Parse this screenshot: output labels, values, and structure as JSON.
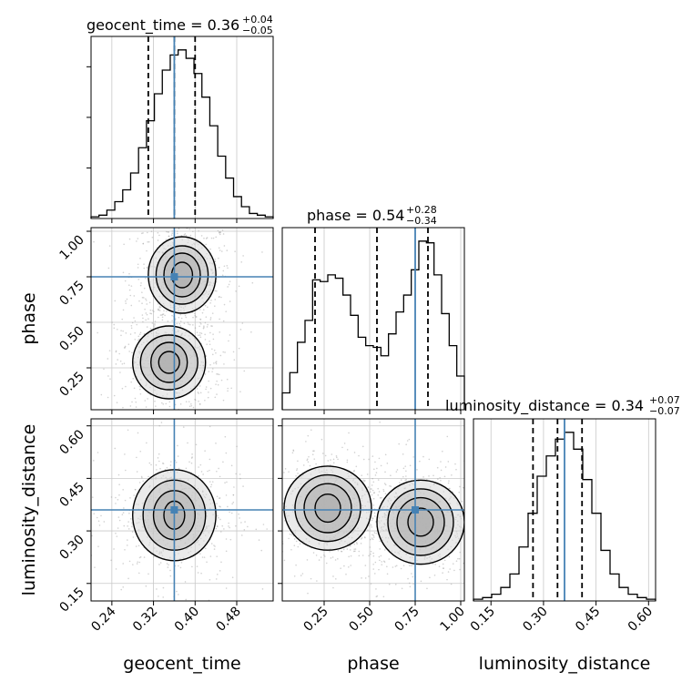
{
  "parameters": [
    {
      "name": "geocent_time",
      "truth": 0.36,
      "median": 0.36,
      "q_lo": 0.31,
      "q_hi": 0.4,
      "title_main": "geocent_time = 0.36",
      "title_sup": "+0.04",
      "title_sub": "−0.05"
    },
    {
      "name": "phase",
      "truth": 0.75,
      "median": 0.54,
      "q_lo": 0.2,
      "q_hi": 0.82,
      "title_main": "phase = 0.54",
      "title_sup": "+0.28",
      "title_sub": "−0.34"
    },
    {
      "name": "luminosity_distance",
      "truth": 0.36,
      "median": 0.34,
      "q_lo": 0.27,
      "q_hi": 0.41,
      "title_main": "luminosity_distance = 0.34",
      "title_sup": "+0.07",
      "title_sub": "−0.07"
    }
  ],
  "axis_labels": {
    "x_geocent": "geocent_time",
    "x_phase": "phase",
    "x_lumdist": "luminosity_distance",
    "y_phase": "phase",
    "y_lumdist": "luminosity_distance"
  },
  "colors": {
    "truth": "#4682b4",
    "hist": "#000000",
    "grid": "#c8c8c8",
    "points": "#9a9a9a"
  },
  "chart_data": {
    "type": "corner",
    "ranges": {
      "geocent_time": [
        0.2,
        0.55
      ],
      "phase": [
        0.02,
        1.02
      ],
      "luminosity_distance": [
        0.1,
        0.62
      ]
    },
    "ticks": {
      "geocent_time": [
        0.24,
        0.32,
        0.4,
        0.48
      ],
      "phase": [
        0.25,
        0.5,
        0.75,
        1.0
      ],
      "luminosity_distance": [
        0.15,
        0.3,
        0.45,
        0.6
      ]
    },
    "tick_labels": {
      "geocent_time": [
        "0.24",
        "0.32",
        "0.40",
        "0.48"
      ],
      "phase": [
        "0.25",
        "0.50",
        "0.75",
        "1.00"
      ],
      "luminosity_distance": [
        "0.15",
        "0.30",
        "0.45",
        "0.60"
      ]
    },
    "histograms": {
      "geocent_time": [
        0.01,
        0.02,
        0.05,
        0.1,
        0.17,
        0.27,
        0.42,
        0.58,
        0.74,
        0.88,
        0.97,
        1.0,
        0.95,
        0.86,
        0.72,
        0.55,
        0.37,
        0.24,
        0.13,
        0.07,
        0.03,
        0.02,
        0.01
      ],
      "phase": [
        0.1,
        0.22,
        0.4,
        0.53,
        0.77,
        0.76,
        0.8,
        0.78,
        0.68,
        0.56,
        0.43,
        0.38,
        0.37,
        0.32,
        0.45,
        0.58,
        0.68,
        0.83,
        1.0,
        0.99,
        0.8,
        0.57,
        0.38,
        0.2
      ],
      "luminosity_distance": [
        0.01,
        0.02,
        0.04,
        0.08,
        0.16,
        0.32,
        0.52,
        0.74,
        0.86,
        0.96,
        1.0,
        0.9,
        0.72,
        0.52,
        0.3,
        0.16,
        0.08,
        0.04,
        0.02,
        0.01
      ]
    },
    "hist_ylim": [
      0,
      1.08
    ],
    "contours_geocent_phase": [
      {
        "cx": 0.375,
        "cy": 0.76,
        "levels": [
          [
            0.02,
            0.07
          ],
          [
            0.035,
            0.12
          ],
          [
            0.05,
            0.16
          ],
          [
            0.065,
            0.21
          ]
        ]
      },
      {
        "cx": 0.35,
        "cy": 0.28,
        "levels": [
          [
            0.02,
            0.06
          ],
          [
            0.035,
            0.11
          ],
          [
            0.055,
            0.15
          ],
          [
            0.07,
            0.2
          ]
        ]
      }
    ],
    "contours_geocent_lumdist": [
      {
        "cx": 0.36,
        "cy": 0.345,
        "levels": [
          [
            0.02,
            0.04
          ],
          [
            0.04,
            0.07
          ],
          [
            0.06,
            0.1
          ],
          [
            0.08,
            0.13
          ]
        ]
      }
    ],
    "contours_phase_lumdist": [
      {
        "cx": 0.27,
        "cy": 0.365,
        "levels": [
          [
            0.07,
            0.04
          ],
          [
            0.13,
            0.07
          ],
          [
            0.18,
            0.095
          ],
          [
            0.24,
            0.12
          ]
        ]
      },
      {
        "cx": 0.78,
        "cy": 0.325,
        "levels": [
          [
            0.07,
            0.04
          ],
          [
            0.13,
            0.07
          ],
          [
            0.18,
            0.095
          ],
          [
            0.24,
            0.12
          ]
        ]
      }
    ],
    "grid": true
  }
}
